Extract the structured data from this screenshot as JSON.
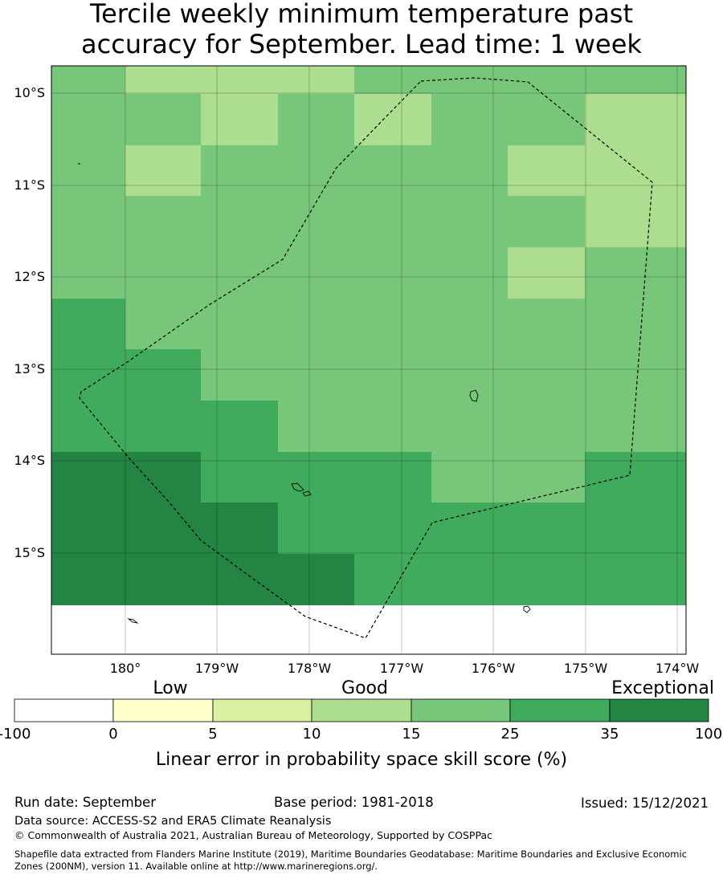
{
  "title_line1": "Tercile weekly minimum temperature past",
  "title_line2": "accuracy for September. Lead time: 1 week",
  "map": {
    "lat_labels": [
      "10°S",
      "11°S",
      "12°S",
      "13°S",
      "14°S",
      "15°S"
    ],
    "lon_labels": [
      "180°",
      "179°W",
      "178°W",
      "177°W",
      "176°W",
      "175°W",
      "174°W"
    ],
    "lat_range": [
      -16.0,
      -9.7
    ],
    "lon_range": [
      179.2,
      185.9
    ],
    "cell_values_rows": [
      [
        25,
        15,
        15,
        15,
        25,
        25,
        25,
        25
      ],
      [
        25,
        25,
        15,
        25,
        15,
        25,
        25,
        15
      ],
      [
        25,
        15,
        25,
        25,
        25,
        25,
        15,
        15
      ],
      [
        25,
        25,
        25,
        25,
        25,
        25,
        25,
        15
      ],
      [
        25,
        25,
        25,
        25,
        25,
        25,
        15,
        25
      ],
      [
        35,
        25,
        25,
        25,
        25,
        25,
        25,
        25
      ],
      [
        35,
        35,
        25,
        25,
        25,
        25,
        25,
        25
      ],
      [
        35,
        35,
        35,
        25,
        25,
        25,
        25,
        25
      ],
      [
        45,
        45,
        35,
        35,
        35,
        25,
        25,
        35
      ],
      [
        45,
        45,
        45,
        35,
        35,
        35,
        35,
        35
      ],
      [
        45,
        45,
        45,
        45,
        35,
        35,
        35,
        35
      ]
    ]
  },
  "legend": {
    "category_labels": [
      "Low",
      "Good",
      "Exceptional"
    ],
    "tick_labels": [
      "-100",
      "0",
      "5",
      "10",
      "15",
      "25",
      "35",
      "100"
    ],
    "colors": [
      "#ffffff",
      "#ffffcc",
      "#d9f0a3",
      "#addd8e",
      "#78c679",
      "#41ab5d",
      "#238443"
    ],
    "axis_label": "Linear error in probability space skill score (%)"
  },
  "footer": {
    "run_date": "Run date: September",
    "base_period": "Base period: 1981-2018",
    "issued": "Issued: 15/12/2021",
    "data_source": "Data source: ACCESS-S2 and ERA5 Climate Reanalysis",
    "copyright": "© Commonwealth of Australia 2021, Australian Bureau of Meteorology, Supported by COSPPac",
    "shapefile_line1": "Shapefile data extracted from Flanders Marine Institute (2019), Maritime Boundaries Geodatabase: Maritime Boundaries and Exclusive Economic",
    "shapefile_line2": "Zones (200NM), version 11. Available online at http://www.marineregions.org/."
  }
}
